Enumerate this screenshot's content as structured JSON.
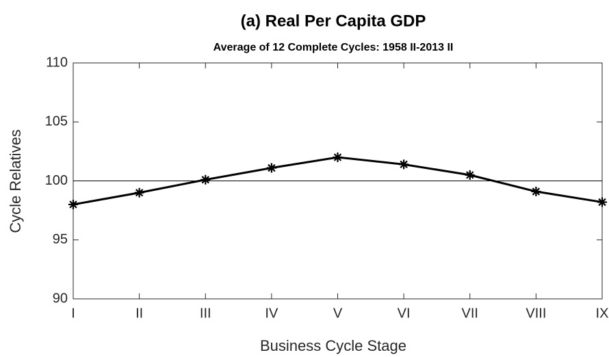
{
  "chart_data": {
    "type": "line",
    "title": "(a) Real Per Capita GDP",
    "subtitle": "Average of 12 Complete Cycles: 1958 II-2013 II",
    "x_label": "Business Cycle Stage",
    "y_label": "Cycle Relatives",
    "categories": [
      "I",
      "II",
      "III",
      "IV",
      "V",
      "VI",
      "VII",
      "VIII",
      "IX"
    ],
    "values": [
      98.0,
      99.0,
      100.1,
      101.1,
      102.0,
      101.4,
      100.5,
      99.1,
      98.2
    ],
    "color": "#000000",
    "marker": "asterisk",
    "reference_line": 100,
    "ylim": [
      90,
      110
    ],
    "yticks": [
      90,
      95,
      100,
      105,
      110
    ]
  }
}
